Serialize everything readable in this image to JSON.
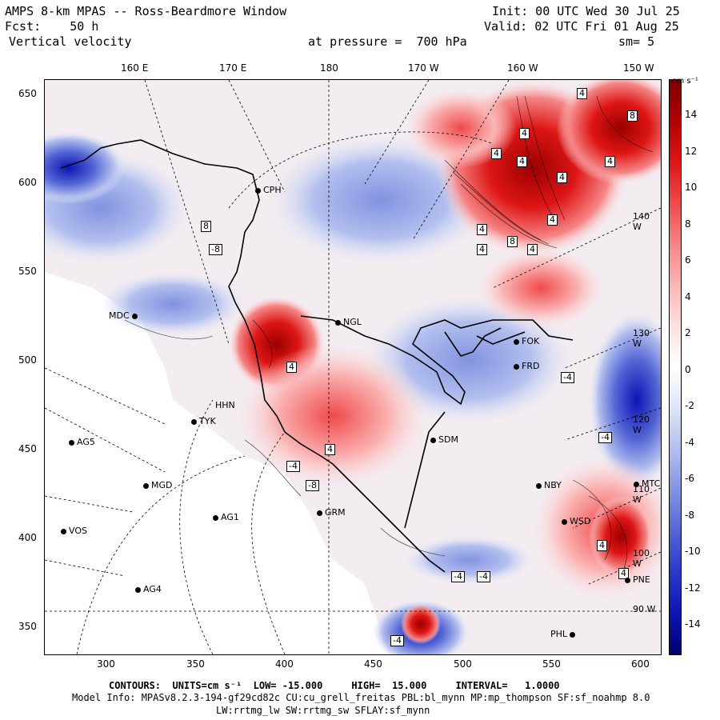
{
  "header": {
    "title_line": "AMPS 8-km MPAS -- Ross-Beardmore Window",
    "fcst_line": "Fcst:    50 h",
    "field_line": " Vertical velocity",
    "init_line": "Init: 00 UTC Wed 30 Jul 25",
    "valid_line": "Valid: 02 UTC Fri 01 Aug 25",
    "pressure_line": "at pressure =  700 hPa",
    "smooth_line": "sm= 5"
  },
  "top_ticks": [
    "160 E",
    "170 E",
    "180",
    "170 W",
    "160 W",
    "150 W"
  ],
  "left_ticks": [
    "650",
    "600",
    "550",
    "500",
    "450",
    "400",
    "350"
  ],
  "bottom_ticks": [
    "300",
    "350",
    "400",
    "450",
    "500",
    "550",
    "600"
  ],
  "colorbar": {
    "unit": "cm s⁻¹",
    "labels": [
      "14",
      "12",
      "10",
      "8",
      "6",
      "4",
      "2",
      "0",
      "-2",
      "-4",
      "-6",
      "-8",
      "-10",
      "-12",
      "-14"
    ],
    "stops": [
      "#7a0000",
      "#b30000",
      "#dd1515",
      "#f04a4a",
      "#f58585",
      "#fab5b5",
      "#fde0e0",
      "#ffffff",
      "#dde4f7",
      "#b2bfee",
      "#8293e0",
      "#5465d4",
      "#2b39c6",
      "#0c14b5",
      "#00006d"
    ]
  },
  "stations": [
    {
      "name": "MDC"
    },
    {
      "name": "AG5"
    },
    {
      "name": "MGD"
    },
    {
      "name": "AG1"
    },
    {
      "name": "VOS"
    },
    {
      "name": "AG4"
    },
    {
      "name": "TYK"
    },
    {
      "name": "HHN"
    },
    {
      "name": "NGL"
    },
    {
      "name": "SDM"
    },
    {
      "name": "GRM"
    },
    {
      "name": "CPH"
    },
    {
      "name": "FOK"
    },
    {
      "name": "FRD"
    },
    {
      "name": "NBY"
    },
    {
      "name": "WSD"
    },
    {
      "name": "PNE"
    },
    {
      "name": "PHL"
    },
    {
      "name": "MTC"
    }
  ],
  "contour_labels": [
    "4",
    "4",
    "4",
    "4",
    "4",
    "4",
    "4",
    "4",
    "4",
    "4",
    "4",
    "4",
    "4",
    "4",
    "4",
    "8",
    "8",
    "8",
    "-4",
    "-4",
    "-4",
    "-4",
    "-4",
    "-4",
    "-8",
    "-8"
  ],
  "meridian_labels": [
    "140 W",
    "130 W",
    "120 W",
    "110 W",
    "100 W",
    "90 W"
  ],
  "footer": {
    "contours_line": "CONTOURS:  UNITS=cm s⁻¹  LOW= -15.000     HIGH=  15.000     INTERVAL=   1.0000",
    "model_line": "Model Info: MPASv8.2.3-194-gf29cd82c CU:cu_grell_freitas PBL:bl_mynn MP:mp_thompson SF:sf_noahmp 8.0",
    "physics_line": "LW:rrtmg_lw SW:rrtmg_sw SFLAY:sf_mynn"
  }
}
